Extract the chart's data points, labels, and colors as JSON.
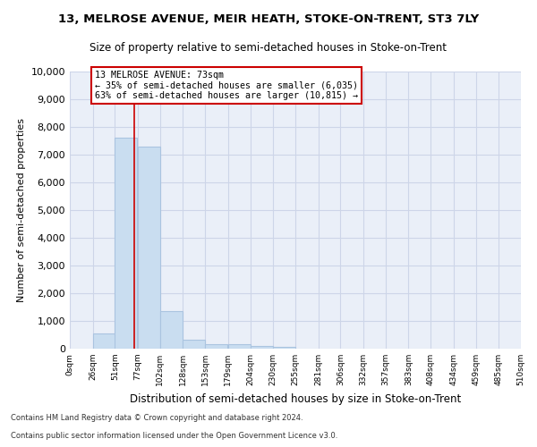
{
  "title": "13, MELROSE AVENUE, MEIR HEATH, STOKE-ON-TRENT, ST3 7LY",
  "subtitle": "Size of property relative to semi-detached houses in Stoke-on-Trent",
  "xlabel": "Distribution of semi-detached houses by size in Stoke-on-Trent",
  "ylabel": "Number of semi-detached properties",
  "footer1": "Contains HM Land Registry data © Crown copyright and database right 2024.",
  "footer2": "Contains public sector information licensed under the Open Government Licence v3.0.",
  "bin_labels": [
    "0sqm",
    "26sqm",
    "51sqm",
    "77sqm",
    "102sqm",
    "128sqm",
    "153sqm",
    "179sqm",
    "204sqm",
    "230sqm",
    "255sqm",
    "281sqm",
    "306sqm",
    "332sqm",
    "357sqm",
    "383sqm",
    "408sqm",
    "434sqm",
    "459sqm",
    "485sqm",
    "510sqm"
  ],
  "bar_values": [
    0,
    560,
    7600,
    7300,
    1350,
    330,
    170,
    150,
    95,
    60,
    0,
    0,
    0,
    0,
    0,
    0,
    0,
    0,
    0,
    0
  ],
  "bar_color": "#c9ddf0",
  "bar_edge_color": "#aac4e0",
  "grid_color": "#cdd5e8",
  "property_line_x": 73,
  "property_line_color": "#cc0000",
  "annotation_text": "13 MELROSE AVENUE: 73sqm\n← 35% of semi-detached houses are smaller (6,035)\n63% of semi-detached houses are larger (10,815) →",
  "annotation_box_color": "#ffffff",
  "annotation_border_color": "#cc0000",
  "ylim": [
    0,
    10000
  ],
  "yticks": [
    0,
    1000,
    2000,
    3000,
    4000,
    5000,
    6000,
    7000,
    8000,
    9000,
    10000
  ],
  "bin_starts": [
    0,
    26,
    51,
    77,
    102,
    128,
    153,
    179,
    204,
    230,
    255,
    281,
    306,
    332,
    357,
    383,
    408,
    434,
    459,
    485
  ],
  "background_color": "#eaeff8",
  "fig_background": "#ffffff"
}
